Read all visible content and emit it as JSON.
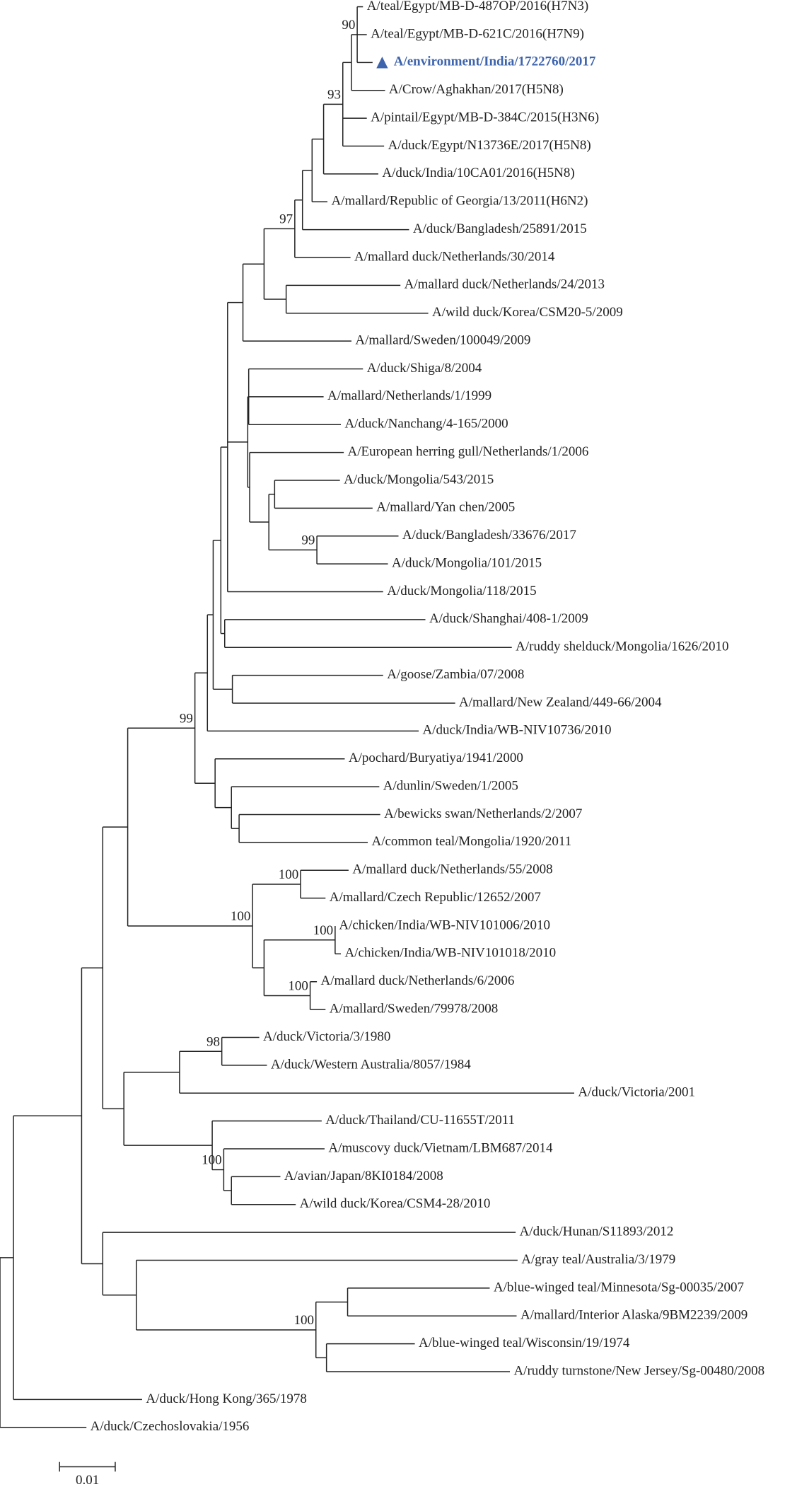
{
  "tree": {
    "leaves": [
      "A/teal/Egypt/MB-D-487OP/2016(H7N3)",
      "A/teal/Egypt/MB-D-621C/2016(H7N9)",
      "A/environment/India/1722760/2017",
      "A/Crow/Aghakhan/2017(H5N8)",
      "A/pintail/Egypt/MB-D-384C/2015(H3N6)",
      "A/duck/Egypt/N13736E/2017(H5N8)",
      "A/duck/India/10CA01/2016(H5N8)",
      "A/mallard/Republic of Georgia/13/2011(H6N2)",
      "A/duck/Bangladesh/25891/2015",
      "A/mallard duck/Netherlands/30/2014",
      "A/mallard duck/Netherlands/24/2013",
      "A/wild duck/Korea/CSM20-5/2009",
      "A/mallard/Sweden/100049/2009",
      "A/duck/Shiga/8/2004",
      "A/mallard/Netherlands/1/1999",
      "A/duck/Nanchang/4-165/2000",
      "A/European herring gull/Netherlands/1/2006",
      "A/duck/Mongolia/543/2015",
      "A/mallard/Yan chen/2005",
      "A/duck/Bangladesh/33676/2017",
      "A/duck/Mongolia/101/2015",
      "A/duck/Mongolia/118/2015",
      "A/duck/Shanghai/408-1/2009",
      "A/ruddy shelduck/Mongolia/1626/2010",
      "A/goose/Zambia/07/2008",
      "A/mallard/New Zealand/449-66/2004",
      "A/duck/India/WB-NIV10736/2010",
      "A/pochard/Buryatiya/1941/2000",
      "A/dunlin/Sweden/1/2005",
      "A/bewicks swan/Netherlands/2/2007",
      "A/common teal/Mongolia/1920/2011",
      "A/mallard duck/Netherlands/55/2008",
      "A/mallard/Czech Republic/12652/2007",
      "A/chicken/India/WB-NIV101006/2010",
      "A/chicken/India/WB-NIV101018/2010",
      "A/mallard duck/Netherlands/6/2006",
      "A/mallard/Sweden/79978/2008",
      "A/duck/Victoria/3/1980",
      "A/duck/Western Australia/8057/1984",
      "A/duck/Victoria/2001",
      "A/duck/Thailand/CU-11655T/2011",
      "A/muscovy duck/Vietnam/LBM687/2014",
      "A/avian/Japan/8KI0184/2008",
      "A/wild duck/Korea/CSM4-28/2010",
      "A/duck/Hunan/S11893/2012",
      "A/gray teal/Australia/3/1979",
      "A/blue-winged teal/Minnesota/Sg-00035/2007",
      "A/mallard/Interior Alaska/9BM2239/2009",
      "A/blue-winged teal/Wisconsin/19/1974",
      "A/ruddy turnstone/New Jersey/Sg-00480/2008",
      "A/duck/Hong Kong/365/1978",
      "A/duck/Czechoslovakia/1956"
    ],
    "bootstrap": [
      90,
      93,
      97,
      99,
      99,
      100,
      100,
      100,
      100,
      98,
      100,
      100
    ],
    "scale_bar": "0.01"
  }
}
